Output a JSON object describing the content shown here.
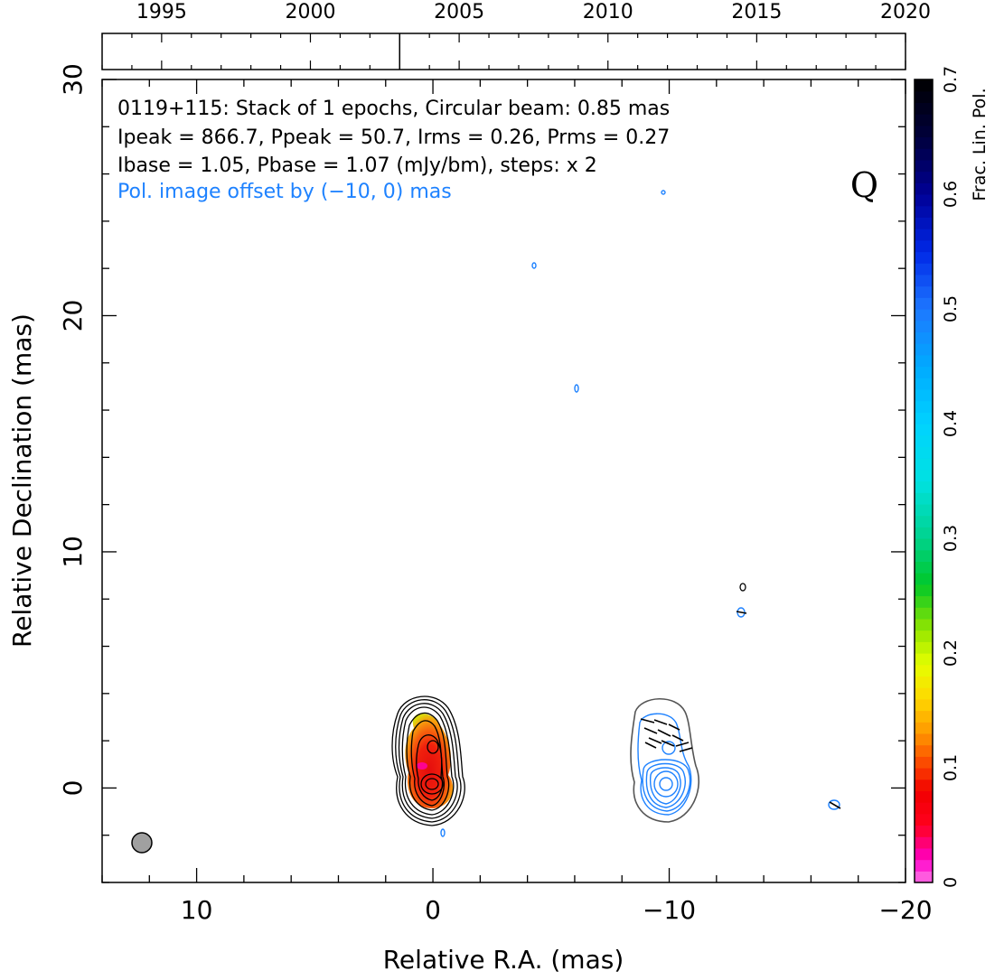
{
  "chart_data": {
    "type": "contour",
    "info_lines": [
      "0119+115: Stack of 1 epochs, Circular beam: 0.85 mas",
      "Ipeak = 866.7, Ppeak = 50.7, Irms = 0.26, Prms = 0.27",
      "Ibase = 1.05, Pbase = 1.07 (mJy/bm), steps: x 2"
    ],
    "pol_offset_note": "Pol. image offset by (−10, 0) mas",
    "band_label": "Q",
    "xlabel": "Relative R.A. (mas)",
    "ylabel": "Relative Declination (mas)",
    "xlim": [
      14,
      -20
    ],
    "ylim": [
      -4,
      30
    ],
    "x_ticks": [
      {
        "value": 10,
        "label": "10"
      },
      {
        "value": 0,
        "label": "0"
      },
      {
        "value": -10,
        "label": "−10"
      },
      {
        "value": -20,
        "label": "−20"
      }
    ],
    "y_ticks": [
      {
        "value": 0,
        "label": "0"
      },
      {
        "value": 10,
        "label": "10"
      },
      {
        "value": 20,
        "label": "20"
      },
      {
        "value": 30,
        "label": "30"
      }
    ],
    "beam": {
      "x": 12.5,
      "y": -2.3,
      "diameter_mas": 0.85
    },
    "stokes_i_component": {
      "x": 0,
      "y": 0,
      "levels": 9
    },
    "polarization_component": {
      "x": -10,
      "y": 0
    },
    "time_axis": {
      "range": [
        1993,
        2020
      ],
      "tick_labels": [
        "1995",
        "2000",
        "2005",
        "2010",
        "2015",
        "2020"
      ],
      "epoch_marks": [
        2003
      ]
    },
    "colorbar": {
      "label": "Frac. Lin. Pol.",
      "range": [
        0,
        0.7
      ],
      "tick_labels": [
        "0",
        "0.1",
        "0.2",
        "0.3",
        "0.4",
        "0.5",
        "0.6",
        "0.7"
      ]
    }
  },
  "colors": {
    "stokes_i_contour": "#000000",
    "pol_contour": "#1e82ff",
    "pol_envelope": "#555555",
    "beam_fill": "#a0a0a0"
  }
}
